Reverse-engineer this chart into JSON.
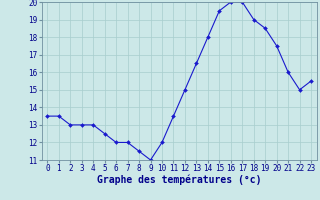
{
  "hours": [
    0,
    1,
    2,
    3,
    4,
    5,
    6,
    7,
    8,
    9,
    10,
    11,
    12,
    13,
    14,
    15,
    16,
    17,
    18,
    19,
    20,
    21,
    22,
    23
  ],
  "temps": [
    13.5,
    13.5,
    13.0,
    13.0,
    13.0,
    12.5,
    12.0,
    12.0,
    11.5,
    11.0,
    12.0,
    13.5,
    15.0,
    16.5,
    18.0,
    19.5,
    20.0,
    20.0,
    19.0,
    18.5,
    17.5,
    16.0,
    15.0,
    15.5
  ],
  "xlabel": "Graphe des températures (°c)",
  "xlim_min": -0.5,
  "xlim_max": 23.5,
  "ylim_min": 11,
  "ylim_max": 20,
  "yticks": [
    11,
    12,
    13,
    14,
    15,
    16,
    17,
    18,
    19,
    20
  ],
  "xticks": [
    0,
    1,
    2,
    3,
    4,
    5,
    6,
    7,
    8,
    9,
    10,
    11,
    12,
    13,
    14,
    15,
    16,
    17,
    18,
    19,
    20,
    21,
    22,
    23
  ],
  "line_color": "#1a1acd",
  "marker": "D",
  "marker_size": 2.0,
  "bg_color": "#cce8e8",
  "grid_color": "#a8cece",
  "axis_label_color": "#00008b",
  "tick_label_color": "#00008b",
  "xlabel_fontsize": 7.0,
  "tick_fontsize": 5.5
}
